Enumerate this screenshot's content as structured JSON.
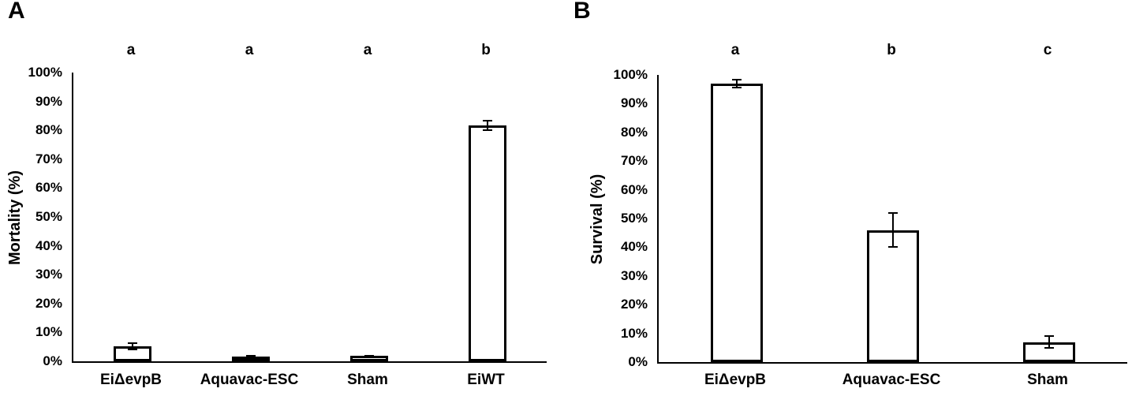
{
  "figure": {
    "background": "#ffffff",
    "bar_fill": "#ffffff",
    "bar_stroke": "#000000",
    "text_color": "#000000"
  },
  "chart_data": [
    {
      "type": "bar",
      "panel_label": "A",
      "title": "",
      "xlabel": "",
      "ylabel": "Mortality (%)",
      "categories": [
        "EiΔevpB",
        "Aquavac-ESC",
        "Sham",
        "EiWT"
      ],
      "values": [
        5.2,
        1.6,
        2.0,
        81.7
      ],
      "errors": [
        1.4,
        0.7,
        0.3,
        2.0
      ],
      "sig_letters": [
        "a",
        "a",
        "a",
        "b"
      ],
      "yticks": [
        "100%",
        "90%",
        "80%",
        "70%",
        "60%",
        "50%",
        "40%",
        "30%",
        "20%",
        "10%",
        "0%"
      ],
      "ylim": [
        0,
        100
      ],
      "grid": false,
      "legend_position": "none"
    },
    {
      "type": "bar",
      "panel_label": "B",
      "title": "",
      "xlabel": "",
      "ylabel": "Survival (%)",
      "categories": [
        "EiΔevpB",
        "Aquavac-ESC",
        "Sham"
      ],
      "values": [
        97.0,
        46.0,
        7.0
      ],
      "errors": [
        1.7,
        6.2,
        2.3
      ],
      "sig_letters": [
        "a",
        "b",
        "c"
      ],
      "yticks": [
        "100%",
        "90%",
        "80%",
        "70%",
        "60%",
        "50%",
        "40%",
        "30%",
        "20%",
        "10%",
        "0%"
      ],
      "ylim": [
        0,
        100
      ],
      "grid": false,
      "legend_position": "none"
    }
  ]
}
